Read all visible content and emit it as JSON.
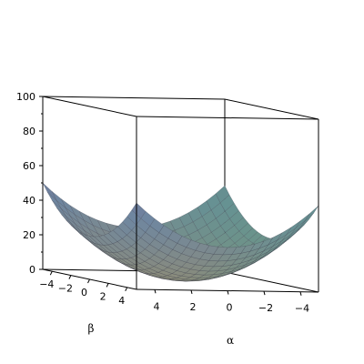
{
  "chart_data": {
    "type": "surface3d",
    "function": "alpha^2 + beta^2",
    "x_axis": {
      "label": "α",
      "range": [
        -5,
        5
      ],
      "ticks": [
        4,
        2,
        0,
        -2,
        -4
      ],
      "tick_labels": [
        "4",
        "2",
        "0",
        "−2",
        "−4"
      ]
    },
    "y_axis": {
      "label": "β",
      "range": [
        -5,
        5
      ],
      "ticks": [
        -4,
        -2,
        0,
        2,
        4
      ],
      "tick_labels": [
        "−4",
        "−2",
        "0",
        "2",
        "4"
      ]
    },
    "z_axis": {
      "label": "",
      "range": [
        0,
        100
      ],
      "ticks": [
        0,
        20,
        40,
        60,
        80,
        100
      ],
      "tick_labels": [
        "0",
        "20",
        "40",
        "60",
        "80",
        "100"
      ]
    },
    "grid_points": 21,
    "bounding_box": true,
    "colors": {
      "low": "#8c8c78",
      "mid": "#6f87a0",
      "high": "#6b3f8c",
      "lit_side": "#5f9a88",
      "mesh": "#3a3a4a"
    }
  }
}
